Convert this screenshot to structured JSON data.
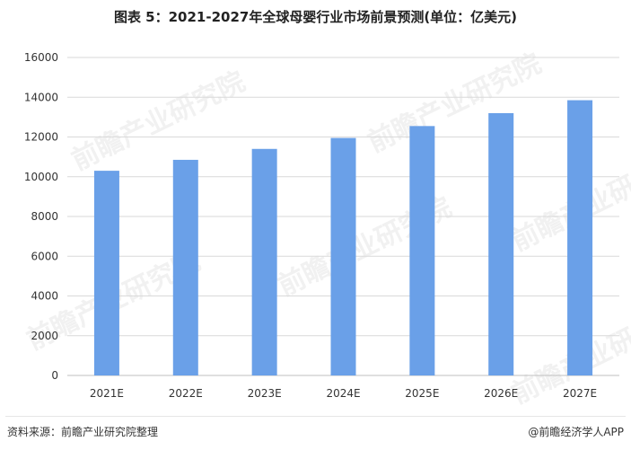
{
  "title": "图表 5：2021-2027年全球母婴行业市场前景预测(单位：亿美元)",
  "watermark_text": "前瞻产业研究院",
  "footer": {
    "source": "资料来源：前瞻产业研究院整理",
    "brand": "@前瞻经济学人APP"
  },
  "colors": {
    "bar": "#6aa0e8",
    "grid": "#d9d9d9",
    "text": "#333333"
  },
  "chart_data": {
    "type": "bar",
    "title": "图表 5：2021-2027年全球母婴行业市场前景预测(单位：亿美元)",
    "categories": [
      "2021E",
      "2022E",
      "2023E",
      "2024E",
      "2025E",
      "2026E",
      "2027E"
    ],
    "values": [
      10300,
      10850,
      11400,
      11950,
      12550,
      13200,
      13850
    ],
    "ylim": [
      0,
      16000
    ],
    "yticks": [
      0,
      2000,
      4000,
      6000,
      8000,
      10000,
      12000,
      14000,
      16000
    ],
    "grid": true,
    "legend": "none"
  }
}
